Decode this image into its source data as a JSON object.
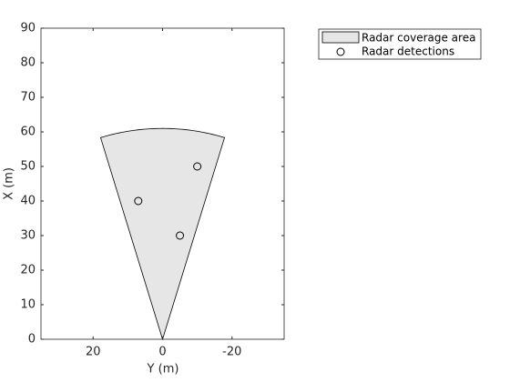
{
  "chart_data": {
    "type": "scatter",
    "xlabel": "Y (m)",
    "ylabel": "X (m)",
    "xlim": [
      35,
      -35
    ],
    "xticks": [
      20,
      0,
      -20
    ],
    "ylim": [
      0,
      90
    ],
    "yticks": [
      0,
      10,
      20,
      30,
      40,
      50,
      60,
      70,
      80,
      90
    ],
    "coverage": {
      "name": "Radar coverage area",
      "color": "#e6e6e6",
      "range": 61,
      "fov": 34
    },
    "series": [
      {
        "name": "Radar detections",
        "color": "#000000",
        "x": [
          -10,
          7,
          -5
        ],
        "values": [
          50,
          40,
          30
        ]
      }
    ],
    "legend": "outside-top-right"
  }
}
